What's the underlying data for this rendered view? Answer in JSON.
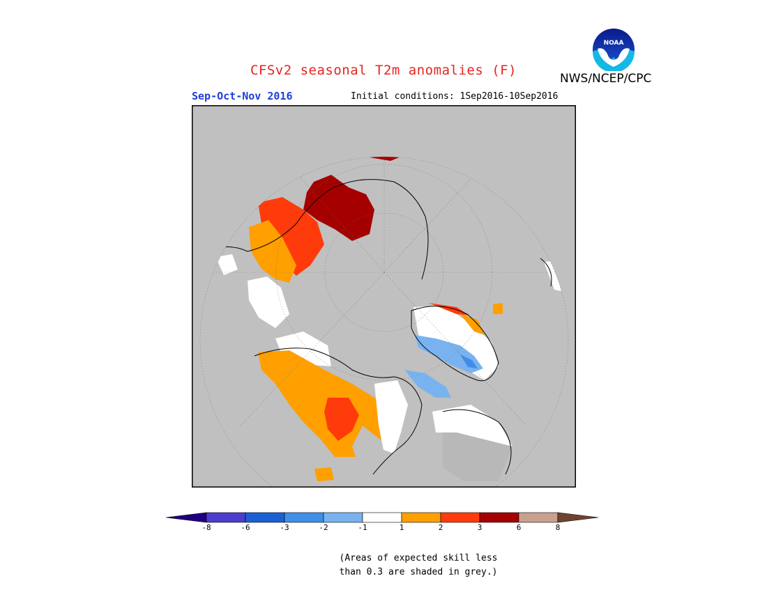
{
  "header": {
    "title": "CFSv2 seasonal T2m anomalies (F)",
    "season": "Sep-Oct-Nov 2016",
    "initial_conditions": "Initial conditions: 1Sep2016-10Sep2016",
    "agency": "NWS/NCEP/CPC",
    "logo_text": "NOAA"
  },
  "colors": {
    "title": "#e8231d",
    "season": "#1f3fd6",
    "ocean_grey": "#c0c0c0",
    "low_skill_grey": "#b8b8b8",
    "near_normal_white": "#ffffff"
  },
  "legend": {
    "bins": [
      {
        "from": "-inf",
        "to": -8,
        "color": "#200080"
      },
      {
        "from": -8,
        "to": -6,
        "color": "#4a3ecb"
      },
      {
        "from": -6,
        "to": -3,
        "color": "#1b60d2"
      },
      {
        "from": -3,
        "to": -2,
        "color": "#3f8ee8"
      },
      {
        "from": -2,
        "to": -1,
        "color": "#78b3f0"
      },
      {
        "from": -1,
        "to": 1,
        "color": "#ffffff"
      },
      {
        "from": 1,
        "to": 2,
        "color": "#ff9f00"
      },
      {
        "from": 2,
        "to": 3,
        "color": "#ff3b0b"
      },
      {
        "from": 3,
        "to": 6,
        "color": "#a50000"
      },
      {
        "from": 6,
        "to": 8,
        "color": "#c9a08f"
      },
      {
        "from": 8,
        "to": "inf",
        "color": "#6e4430"
      }
    ],
    "tick_labels": [
      "-8",
      "-6",
      "-3",
      "-2",
      "-1",
      "1",
      "2",
      "3",
      "6",
      "8"
    ]
  },
  "note": {
    "line1": "(Areas of expected skill less",
    "line2": "than 0.3 are shaded in grey.)"
  }
}
